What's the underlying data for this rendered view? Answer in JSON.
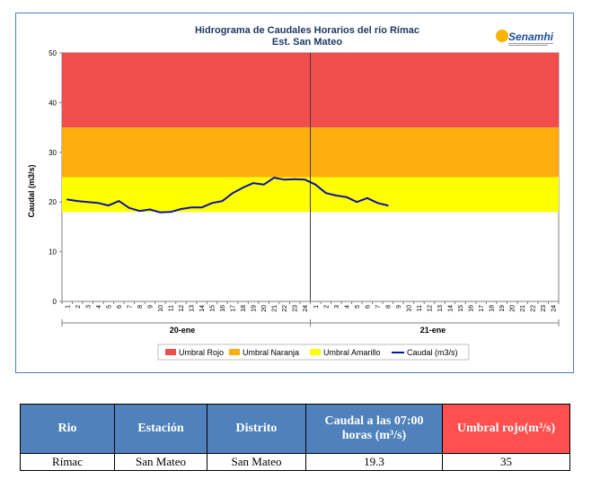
{
  "chart_data": {
    "type": "line",
    "title": "Hidrograma  de Caudales Horarios  del río Rímac",
    "subtitle": "Est. San Mateo",
    "ylabel": "Caudal (m3/s)",
    "ylim": [
      0,
      50
    ],
    "yticks": [
      "0",
      "10",
      "20",
      "30",
      "40",
      "50"
    ],
    "days": [
      "20-ene",
      "21-ene"
    ],
    "hour_ticks": [
      "1",
      "2",
      "3",
      "4",
      "5",
      "6",
      "7",
      "8",
      "9",
      "10",
      "11",
      "12",
      "13",
      "14",
      "15",
      "16",
      "17",
      "18",
      "19",
      "20",
      "21",
      "22",
      "23",
      "24"
    ],
    "thresholds": [
      {
        "name": "Umbral Rojo",
        "from": 35,
        "to": 50,
        "color": "#f24d4d"
      },
      {
        "name": "Umbral Naranja",
        "from": 25,
        "to": 35,
        "color": "#ffad0f"
      },
      {
        "name": "Umbral Amarillo",
        "from": 18,
        "to": 25,
        "color": "#ffff00"
      }
    ],
    "series": [
      {
        "name": "Caudal (m3/s)",
        "color": "#0b12a8",
        "values": [
          20.5,
          20.2,
          20.0,
          19.8,
          19.3,
          20.2,
          18.8,
          18.2,
          18.5,
          17.9,
          18.0,
          18.6,
          18.9,
          18.9,
          19.8,
          20.2,
          21.8,
          22.9,
          23.8,
          23.5,
          24.9,
          24.5,
          24.6,
          24.5,
          23.5,
          21.8,
          21.3,
          21.0,
          20.0,
          20.8,
          19.8,
          19.3
        ]
      }
    ]
  },
  "logo": {
    "text": "Senamhi"
  },
  "table": {
    "headers": [
      "Rio",
      "Estación",
      "Distrito",
      "Caudal a las 07:00 horas (m³/s)",
      "Umbral rojo(m³/s)"
    ],
    "row": [
      "Rímac",
      "San Mateo",
      "San Mateo",
      "19.3",
      "35"
    ]
  }
}
